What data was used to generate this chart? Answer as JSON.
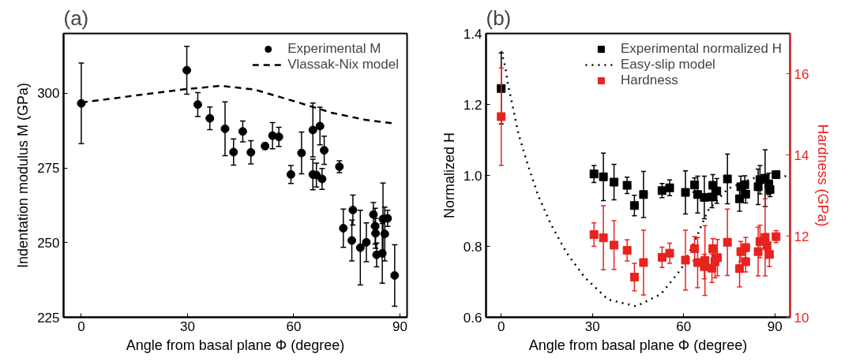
{
  "chart_data": [
    {
      "type": "scatter",
      "title": "(a)",
      "xlabel": "Angle from basal plane Φ (degree)",
      "ylabel": "Indentation modulus M (GPa)",
      "xlim": [
        -5,
        92
      ],
      "ylim": [
        225,
        320
      ],
      "xticks": [
        0,
        30,
        60,
        90
      ],
      "yticks": [
        225,
        250,
        275,
        300
      ],
      "legend": "top right",
      "grid": false,
      "series": [
        {
          "name": "Experimental M",
          "marker": "circle",
          "color": "#000000",
          "x": [
            0,
            29.8,
            32.9,
            36.3,
            40.6,
            43.0,
            45.6,
            47.9,
            51.9,
            54.0,
            55.8,
            59.2,
            62.2,
            65.4,
            65.4,
            66.4,
            67.4,
            68.0,
            68.6,
            72.9,
            74.0,
            76.4,
            76.7,
            78.8,
            80.5,
            82.5,
            83.0,
            83.1,
            83.4,
            85.0,
            85.2,
            85.7,
            86.5,
            88.5
          ],
          "values": [
            296.6,
            307.7,
            296.2,
            291.6,
            288.1,
            280.3,
            287.2,
            280.2,
            282.3,
            285.8,
            285.4,
            272.8,
            280.0,
            287.7,
            272.8,
            272.6,
            289.0,
            271.3,
            280.9,
            275.4,
            254.8,
            250.7,
            260.9,
            248.3,
            250.1,
            259.4,
            255.5,
            253.1,
            245.9,
            246.4,
            257.9,
            252.9,
            258.1,
            239.0
          ],
          "errors": [
            13.5,
            8,
            4,
            3.8,
            9,
            4.4,
            3.5,
            3.9,
            1,
            4.4,
            3.2,
            3,
            7,
            9,
            5.1,
            4,
            6.3,
            3.5,
            4.7,
            2,
            6.4,
            6.8,
            5,
            12.5,
            6.5,
            4,
            6,
            5,
            4,
            10,
            12,
            9,
            2.7,
            10.3
          ]
        },
        {
          "name": "Vlassak-Nix model",
          "type": "line",
          "line_style": "dashed",
          "color": "#000000",
          "x": [
            0,
            28.2,
            39.4,
            49,
            60.2,
            70.6,
            80.2,
            88.2
          ],
          "values": [
            296.9,
            301.2,
            302.5,
            301.2,
            297.3,
            293.5,
            291.1,
            289.9
          ]
        }
      ]
    },
    {
      "type": "scatter",
      "title": "(b)",
      "xlabel": "Angle from basal plane Φ (degree)",
      "ylabel": "Normalized H",
      "y2label": "Hardness (GPa)",
      "xlim": [
        -5,
        95
      ],
      "ylim": [
        0.6,
        1.4
      ],
      "y2lim": [
        10,
        17
      ],
      "xticks": [
        0,
        30,
        60,
        90
      ],
      "yticks": [
        {
          "value": 0.6,
          "label": "0.6"
        },
        {
          "value": 0.8,
          "label": "0.8"
        },
        {
          "value": 1.0,
          "label": "1.0"
        },
        {
          "value": 1.2,
          "label": "1.2"
        },
        {
          "value": 1.4,
          "label": "1.4"
        }
      ],
      "y2ticks": [
        10,
        12,
        14,
        16
      ],
      "legend": "top right",
      "grid": false,
      "series": [
        {
          "name": "Experimental normalized H",
          "marker": "square",
          "color": "#000000",
          "x": [
            0,
            30.5,
            33.6,
            37.1,
            41.4,
            43.8,
            46.8,
            52.9,
            55.4,
            60.6,
            63.6,
            64.6,
            66.8,
            69.3,
            69.6,
            70.9,
            74.4,
            78.4,
            78.8,
            80.1,
            80.4,
            84.5,
            85.1,
            86.8,
            88.0,
            88.4,
            90.4
          ],
          "values": [
            1.245,
            1.004,
            0.996,
            0.981,
            0.972,
            0.915,
            0.946,
            0.957,
            0.965,
            0.952,
            0.973,
            0.946,
            0.938,
            0.939,
            0.972,
            0.956,
            0.99,
            0.934,
            0.968,
            0.974,
            0.947,
            0.968,
            0.988,
            0.992,
            0.976,
            0.96,
            1.002
          ],
          "errors": [
            0.1,
            0.024,
            0.067,
            0.05,
            0.023,
            0.029,
            0.065,
            0.02,
            0.022,
            0.061,
            0.02,
            0.052,
            0.06,
            0.03,
            0.03,
            0.035,
            0.07,
            0.035,
            0.03,
            0.025,
            0.025,
            0.05,
            0.04,
            0.08,
            0.03,
            0.02,
            0.01
          ]
        },
        {
          "name": "Easy-slip model",
          "type": "line",
          "line_style": "dotted",
          "color": "#000000",
          "x": [
            0,
            1.4,
            2.2,
            3.4,
            5.6,
            8.7,
            12.1,
            16.4,
            21.5,
            27.4,
            35.1,
            44.4,
            52.5,
            59.3,
            64.0,
            68.0,
            74.5,
            82.7,
            93.7
          ],
          "values": [
            1.35,
            1.303,
            1.256,
            1.21,
            1.119,
            1.031,
            0.944,
            0.861,
            0.782,
            0.713,
            0.65,
            0.631,
            0.665,
            0.737,
            0.822,
            0.901,
            0.962,
            0.992,
            0.998
          ]
        },
        {
          "name": "Hardness",
          "marker": "square",
          "axis": "y2",
          "color": "#e8231f",
          "x": [
            0,
            30.5,
            33.6,
            37.1,
            41.4,
            43.8,
            46.8,
            52.9,
            55.4,
            60.6,
            63.6,
            64.6,
            66.8,
            67.0,
            69.3,
            69.6,
            70.3,
            71.1,
            74.4,
            78.4,
            78.8,
            80.4,
            80.4,
            84.5,
            85.1,
            86.8,
            87.4,
            88.2,
            90.4
          ],
          "values": [
            14.95,
            12.04,
            11.96,
            11.78,
            11.65,
            10.99,
            11.35,
            11.48,
            11.58,
            11.41,
            11.69,
            11.35,
            11.25,
            11.4,
            11.21,
            11.69,
            11.37,
            11.47,
            11.85,
            11.2,
            11.62,
            11.72,
            11.37,
            11.62,
            11.87,
            11.97,
            11.76,
            11.55,
            11.99
          ],
          "errors": [
            1.2,
            0.29,
            0.79,
            0.6,
            0.26,
            0.34,
            0.8,
            0.25,
            0.25,
            0.74,
            0.3,
            0.62,
            0.3,
            0.86,
            0.35,
            0.25,
            0.4,
            0.45,
            0.82,
            0.45,
            0.25,
            0.25,
            0.25,
            0.6,
            0.4,
            0.95,
            0.3,
            0.3,
            0.15
          ]
        }
      ]
    }
  ]
}
